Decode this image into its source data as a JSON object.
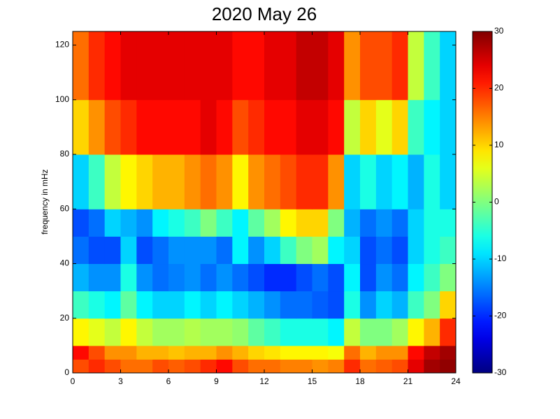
{
  "chart_data": {
    "type": "heatmap",
    "title": "2020 May 26",
    "y_label": "frequency in mHz",
    "colormap": "jet",
    "x_edges": [
      0,
      1,
      2,
      3,
      4,
      5,
      6,
      7,
      8,
      9,
      10,
      11,
      12,
      13,
      14,
      15,
      16,
      17,
      18,
      19,
      20,
      21,
      22,
      23,
      24
    ],
    "y_edges": [
      0,
      5,
      10,
      20,
      30,
      40,
      50,
      60,
      80,
      100,
      125
    ],
    "z": [
      [
        18,
        20,
        18,
        16,
        16,
        18,
        17,
        18,
        20,
        22,
        18,
        16,
        16,
        15,
        15,
        14,
        15,
        20,
        16,
        17,
        18,
        24,
        28,
        29
      ],
      [
        22,
        18,
        14,
        14,
        12,
        12,
        11,
        12,
        12,
        14,
        12,
        10,
        9,
        8,
        8,
        8,
        7,
        16,
        12,
        14,
        14,
        22,
        26,
        28
      ],
      [
        8,
        6,
        4,
        8,
        4,
        2,
        2,
        3,
        2,
        2,
        1,
        -2,
        -4,
        -6,
        -6,
        -6,
        -8,
        4,
        0,
        0,
        2,
        8,
        12,
        20
      ],
      [
        -4,
        -6,
        -8,
        -2,
        -8,
        -10,
        -10,
        -8,
        -10,
        -8,
        -10,
        -12,
        -14,
        -16,
        -16,
        -17,
        -18,
        -6,
        -14,
        -10,
        -12,
        -4,
        0,
        10
      ],
      [
        -12,
        -14,
        -14,
        -6,
        -14,
        -16,
        -15,
        -14,
        -16,
        -14,
        -16,
        -18,
        -20,
        -20,
        -18,
        -16,
        -18,
        -8,
        -18,
        -14,
        -16,
        -8,
        -4,
        0
      ],
      [
        -16,
        -18,
        -18,
        -10,
        -18,
        -16,
        -14,
        -14,
        -14,
        -16,
        -8,
        -14,
        -10,
        -4,
        0,
        2,
        -8,
        -10,
        -18,
        -16,
        -18,
        -10,
        -6,
        -4
      ],
      [
        -18,
        -16,
        -10,
        -12,
        -14,
        -8,
        -6,
        -4,
        0,
        -4,
        -8,
        -2,
        2,
        8,
        10,
        10,
        0,
        -12,
        -16,
        -14,
        -16,
        -10,
        -6,
        -6
      ],
      [
        -10,
        -4,
        4,
        8,
        10,
        12,
        12,
        14,
        16,
        14,
        8,
        14,
        16,
        18,
        20,
        20,
        14,
        -10,
        -6,
        -10,
        -8,
        -12,
        -6,
        -10
      ],
      [
        10,
        14,
        18,
        20,
        22,
        22,
        22,
        22,
        24,
        22,
        18,
        20,
        22,
        22,
        24,
        24,
        22,
        4,
        10,
        6,
        10,
        -4,
        -8,
        -10
      ],
      [
        16,
        20,
        22,
        24,
        24,
        24,
        24,
        24,
        24,
        24,
        22,
        22,
        24,
        24,
        26,
        26,
        24,
        14,
        18,
        18,
        20,
        4,
        -4,
        -10
      ]
    ],
    "xlim": [
      0,
      24
    ],
    "xticks": [
      0,
      3,
      6,
      9,
      12,
      15,
      18,
      21,
      24
    ],
    "ylim": [
      0,
      125
    ],
    "yticks": [
      0,
      20,
      40,
      60,
      80,
      100,
      120
    ],
    "clim": [
      -30,
      30
    ],
    "cticks": [
      -30,
      -20,
      -10,
      0,
      10,
      20,
      30
    ]
  }
}
